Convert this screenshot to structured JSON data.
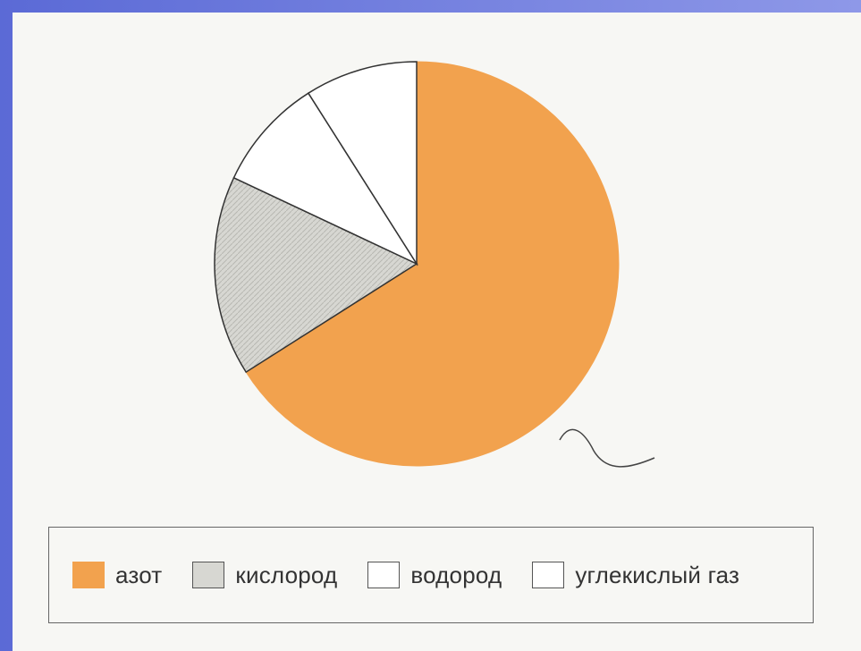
{
  "chart_data": {
    "type": "pie",
    "categories": [
      "азот",
      "кислород",
      "водород",
      "углекислый газ"
    ],
    "values": [
      66,
      16,
      9,
      9
    ],
    "colors": [
      "#f2a24e",
      "#d7d7d2",
      "#ffffff",
      "#ffffff"
    ],
    "legend": "bottom"
  },
  "legend": {
    "items": [
      {
        "label": "азот",
        "color": "#f2a24e"
      },
      {
        "label": "кислород",
        "color": "#d7d7d2"
      },
      {
        "label": "водород",
        "color": "#ffffff"
      },
      {
        "label": "углекислый газ",
        "color": "#ffffff"
      }
    ]
  }
}
